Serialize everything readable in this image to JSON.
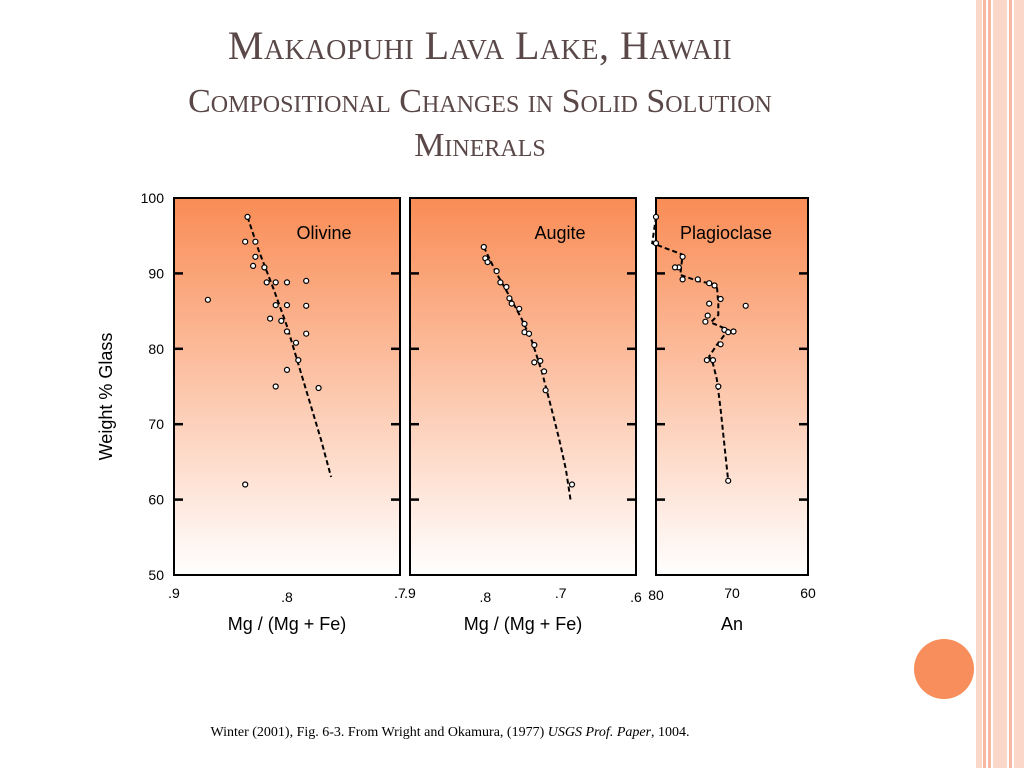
{
  "slide": {
    "title_line1": "Makaopuhi Lava Lake, Hawaii",
    "title_line2": "Compositional Changes in Solid Solution",
    "title_line3": "Minerals",
    "caption_pre": "Winter (2001), Fig. 6-3. From Wright and Okamura, (1977) ",
    "caption_italic": "USGS Prof. Paper",
    "caption_post": ", 1004.",
    "colors": {
      "stripe": "#f6b8a3",
      "accent_circle": "#f98e5d",
      "gradient_top": "#f98c55",
      "gradient_bottom": "#ffffff"
    }
  },
  "chart_data": {
    "type": "scatter",
    "ylabel": "Weight % Glass",
    "ylim": [
      50,
      100
    ],
    "yticks": [
      50,
      60,
      70,
      80,
      90,
      100
    ],
    "panels": [
      {
        "name": "Olivine",
        "xlabel": "Mg / (Mg + Fe)",
        "xlim": [
          0.9,
          0.7
        ],
        "xticks": [
          {
            "v": 0.9,
            "label": ".9"
          },
          {
            "v": 0.8,
            "label": ".8"
          },
          {
            "v": 0.7,
            "label": ".7"
          }
        ],
        "points": [
          [
            0.835,
            97.5
          ],
          [
            0.837,
            94.2
          ],
          [
            0.828,
            94.2
          ],
          [
            0.828,
            92.2
          ],
          [
            0.83,
            91
          ],
          [
            0.82,
            90.8
          ],
          [
            0.818,
            88.8
          ],
          [
            0.81,
            88.8
          ],
          [
            0.8,
            88.8
          ],
          [
            0.783,
            89
          ],
          [
            0.87,
            86.5
          ],
          [
            0.81,
            85.8
          ],
          [
            0.8,
            85.8
          ],
          [
            0.783,
            85.7
          ],
          [
            0.815,
            84
          ],
          [
            0.805,
            83.7
          ],
          [
            0.783,
            82
          ],
          [
            0.8,
            82.3
          ],
          [
            0.792,
            80.8
          ],
          [
            0.79,
            78.5
          ],
          [
            0.8,
            77.2
          ],
          [
            0.81,
            75
          ],
          [
            0.772,
            74.8
          ],
          [
            0.837,
            62
          ]
        ],
        "trend": [
          [
            0.835,
            97.5
          ],
          [
            0.825,
            93
          ],
          [
            0.812,
            88
          ],
          [
            0.8,
            83
          ],
          [
            0.79,
            78
          ],
          [
            0.78,
            73
          ],
          [
            0.77,
            68
          ],
          [
            0.761,
            63
          ]
        ]
      },
      {
        "name": "Augite",
        "xlabel": "Mg / (Mg + Fe)",
        "xlim": [
          0.9,
          0.6
        ],
        "xticks": [
          {
            "v": 0.9,
            "label": ".9"
          },
          {
            "v": 0.8,
            "label": ".8"
          },
          {
            "v": 0.7,
            "label": ".7"
          },
          {
            "v": 0.6,
            "label": ".6"
          }
        ],
        "points": [
          [
            0.802,
            93.5
          ],
          [
            0.8,
            92
          ],
          [
            0.797,
            91.5
          ],
          [
            0.785,
            90.3
          ],
          [
            0.78,
            88.8
          ],
          [
            0.772,
            88.2
          ],
          [
            0.768,
            86.7
          ],
          [
            0.765,
            86
          ],
          [
            0.755,
            85.3
          ],
          [
            0.748,
            83.3
          ],
          [
            0.748,
            82.2
          ],
          [
            0.742,
            82
          ],
          [
            0.735,
            80.5
          ],
          [
            0.735,
            78.2
          ],
          [
            0.727,
            78.4
          ],
          [
            0.722,
            77
          ],
          [
            0.72,
            74.5
          ],
          [
            0.685,
            62
          ]
        ],
        "trend": [
          [
            0.802,
            93.5
          ],
          [
            0.785,
            90
          ],
          [
            0.768,
            87
          ],
          [
            0.752,
            84
          ],
          [
            0.738,
            81
          ],
          [
            0.725,
            77
          ],
          [
            0.712,
            72
          ],
          [
            0.702,
            68
          ],
          [
            0.693,
            64
          ],
          [
            0.687,
            60
          ]
        ]
      },
      {
        "name": "Plagioclase",
        "xlabel": "An",
        "xlim": [
          80,
          60
        ],
        "xticks": [
          {
            "v": 80,
            "label": "80"
          },
          {
            "v": 70,
            "label": "70"
          },
          {
            "v": 60,
            "label": "60"
          }
        ],
        "points": [
          [
            80,
            97.5
          ],
          [
            80,
            94
          ],
          [
            76.5,
            92.2
          ],
          [
            77,
            90.8
          ],
          [
            77.5,
            90.8
          ],
          [
            76.5,
            89.2
          ],
          [
            74.5,
            89.2
          ],
          [
            73,
            88.7
          ],
          [
            72.3,
            88.4
          ],
          [
            73,
            86
          ],
          [
            71.5,
            86.6
          ],
          [
            68.2,
            85.7
          ],
          [
            73.2,
            84.4
          ],
          [
            73.5,
            83.6
          ],
          [
            71,
            82.5
          ],
          [
            70.5,
            82.2
          ],
          [
            69.8,
            82.3
          ],
          [
            71.5,
            80.6
          ],
          [
            73.3,
            78.5
          ],
          [
            72.5,
            78.5
          ],
          [
            71.8,
            75
          ],
          [
            70.5,
            62.5
          ]
        ],
        "trend": [
          [
            80,
            97.5
          ],
          [
            80.5,
            94
          ],
          [
            76.5,
            92.5
          ],
          [
            76.8,
            89.8
          ],
          [
            74.5,
            89
          ],
          [
            72,
            88.5
          ],
          [
            71.8,
            86
          ],
          [
            71.8,
            84.5
          ],
          [
            72.8,
            83.5
          ],
          [
            70.5,
            82.5
          ],
          [
            72,
            80.5
          ],
          [
            73,
            79
          ],
          [
            72.5,
            78
          ],
          [
            72,
            76
          ],
          [
            71.5,
            72
          ],
          [
            70.5,
            62.5
          ]
        ]
      }
    ]
  }
}
